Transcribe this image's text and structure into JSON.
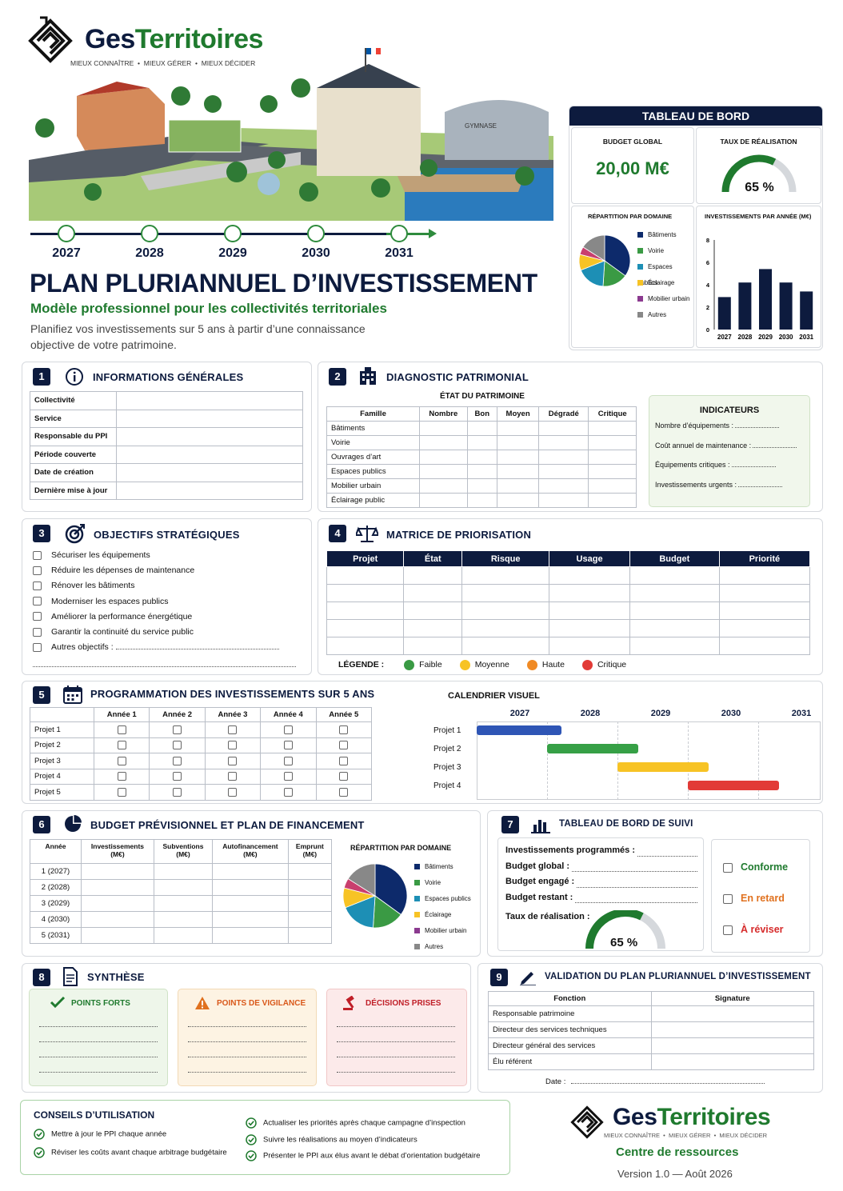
{
  "brand": {
    "name_part1": "Ges",
    "name_part2": "Territoires",
    "tagline": "MIEUX CONNAÎTRE  •  MIEUX GÉRER  •  MIEUX DÉCIDER"
  },
  "timeline": {
    "years": [
      "2027",
      "2028",
      "2029",
      "2030",
      "2031"
    ]
  },
  "hero": {
    "title": "PLAN PLURIANNUEL D’INVESTISSEMENT",
    "subtitle": "Modèle professionnel pour les collectivités territoriales",
    "description_line1": "Planifiez vos investissements sur 5 ans à partir d’une connaissance",
    "description_line2": "objective de votre patrimoine.",
    "gym_label": "GYMNASE"
  },
  "colors": {
    "navy": "#0d1b3e",
    "green": "#1f7a2e",
    "blue": "#0d2a6b",
    "teal": "#1d8fb5",
    "green_slice": "#3a9a44",
    "yellow": "#f7c325",
    "purple": "#8b3a8f",
    "pink": "#c93f6e",
    "grey": "#888888",
    "orange": "#f08a24",
    "red": "#e23a36"
  },
  "dashboard": {
    "header": "TABLEAU DE BORD",
    "budget_label": "BUDGET GLOBAL",
    "budget_value": "20,00 M€",
    "rate_label": "TAUX DE RÉALISATION",
    "rate_value": "65 %",
    "rate": 0.65,
    "pie_title": "RÉPARTITION PAR DOMAINE",
    "domains": [
      "Bâtiments",
      "Voirie",
      "Espaces publics",
      "Éclairage",
      "Mobilier urbain",
      "Autres"
    ],
    "bar_title": "INVESTISSEMENTS PAR ANNÉE (M€)",
    "bar_yticks": [
      "0",
      "2",
      "4",
      "6",
      "8"
    ]
  },
  "chart_data": [
    {
      "type": "bar",
      "title": "INVESTISSEMENTS PAR ANNÉE (M€)",
      "categories": [
        "2027",
        "2028",
        "2029",
        "2030",
        "2031"
      ],
      "values": [
        2.9,
        4.2,
        5.4,
        4.2,
        3.4
      ],
      "ylim": [
        0,
        8
      ]
    },
    {
      "type": "pie",
      "title": "RÉPARTITION PAR DOMAINE",
      "categories": [
        "Bâtiments",
        "Voirie",
        "Espaces publics",
        "Éclairage",
        "Mobilier urbain",
        "Autres"
      ],
      "values": [
        35,
        16,
        18,
        10,
        5,
        16
      ]
    }
  ],
  "s1": {
    "num": "1",
    "title": "INFORMATIONS GÉNÉRALES",
    "rows": [
      "Collectivité",
      "Service",
      "Responsable du PPI",
      "Période couverte",
      "Date de création",
      "Dernière mise à jour"
    ]
  },
  "s2": {
    "num": "2",
    "title": "DIAGNOSTIC PATRIMONIAL",
    "table_title": "ÉTAT DU PATRIMOINE",
    "headers": [
      "Famille",
      "Nombre",
      "Bon",
      "Moyen",
      "Dégradé",
      "Critique"
    ],
    "rows": [
      "Bâtiments",
      "Voirie",
      "Ouvrages d’art",
      "Espaces publics",
      "Mobilier urbain",
      "Éclairage public"
    ],
    "ind_title": "INDICATEURS",
    "indicators": [
      "Nombre d’équipements :",
      "Coût annuel de maintenance :",
      "Équipements critiques :",
      "Investissements urgents :"
    ]
  },
  "s3": {
    "num": "3",
    "title": "OBJECTIFS STRATÉGIQUES",
    "items": [
      "Sécuriser les équipements",
      "Réduire les dépenses de maintenance",
      "Rénover les bâtiments",
      "Moderniser les espaces publics",
      "Améliorer la performance énergétique",
      "Garantir la continuité du service public",
      "Autres objectifs :"
    ]
  },
  "s4": {
    "num": "4",
    "title": "MATRICE DE PRIORISATION",
    "headers": [
      "Projet",
      "État",
      "Risque",
      "Usage",
      "Budget",
      "Priorité"
    ],
    "legend_label": "LÉGENDE :",
    "legend": [
      "Faible",
      "Moyenne",
      "Haute",
      "Critique"
    ]
  },
  "s5": {
    "num": "5",
    "title": "PROGRAMMATION DES INVESTISSEMENTS SUR 5 ANS",
    "headers": [
      "Année 1",
      "Année 2",
      "Année 3",
      "Année 4",
      "Année 5"
    ],
    "projects": [
      "Projet 1",
      "Projet 2",
      "Projet 3",
      "Projet 4",
      "Projet 5"
    ],
    "cal_title": "CALENDRIER VISUEL",
    "cal_years": [
      "2027",
      "2028",
      "2029",
      "2030",
      "2031"
    ],
    "cal_projects": [
      "Projet 1",
      "Projet 2",
      "Projet 3",
      "Projet 4"
    ],
    "gantt": [
      {
        "start": 2027,
        "end": 2028.2
      },
      {
        "start": 2028,
        "end": 2029.3
      },
      {
        "start": 2029,
        "end": 2030.3
      },
      {
        "start": 2030,
        "end": 2031.3
      }
    ]
  },
  "s6": {
    "num": "6",
    "title": "BUDGET PRÉVISIONNEL ET PLAN DE FINANCEMENT",
    "headers": [
      [
        "Année",
        ""
      ],
      [
        "Investissements",
        "(M€)"
      ],
      [
        "Subventions",
        "(M€)"
      ],
      [
        "Autofinancement",
        "(M€)"
      ],
      [
        "Emprunt",
        "(M€)"
      ]
    ],
    "rows": [
      "1 (2027)",
      "2 (2028)",
      "3 (2029)",
      "4 (2030)",
      "5 (2031)"
    ],
    "pie_title": "RÉPARTITION PAR DOMAINE"
  },
  "s7": {
    "num": "7",
    "title": "TABLEAU DE BORD DE SUIVI",
    "lines": [
      "Investissements programmés :",
      "Budget global :",
      "Budget engagé :",
      "Budget restant :"
    ],
    "rate_label": "Taux de réalisation :",
    "rate_value": "65 %",
    "statuses": [
      "Conforme",
      "En retard",
      "À réviser"
    ]
  },
  "s8": {
    "num": "8",
    "title": "SYNTHÈSE",
    "boxes": [
      "POINTS FORTS",
      "POINTS DE VIGILANCE",
      "DÉCISIONS PRISES"
    ]
  },
  "s9": {
    "num": "9",
    "title": "VALIDATION DU PLAN PLURIANNUEL D’INVESTISSEMENT",
    "headers": [
      "Fonction",
      "Signature"
    ],
    "rows": [
      "Responsable patrimoine",
      "Directeur des services techniques",
      "Directeur général des services",
      "Élu référent"
    ],
    "date_label": "Date :"
  },
  "tips": {
    "title": "CONSEILS D’UTILISATION",
    "left": [
      "Mettre à jour le PPI chaque année",
      "Réviser les coûts avant chaque arbitrage budgétaire"
    ],
    "right": [
      "Actualiser les priorités après chaque campagne d’inspection",
      "Suivre les réalisations au moyen d’indicateurs",
      "Présenter le PPI aux élus avant le débat d’orientation budgétaire"
    ]
  },
  "footer": {
    "resource": "Centre de ressources",
    "version": "Version 1.0 — Août 2026"
  }
}
